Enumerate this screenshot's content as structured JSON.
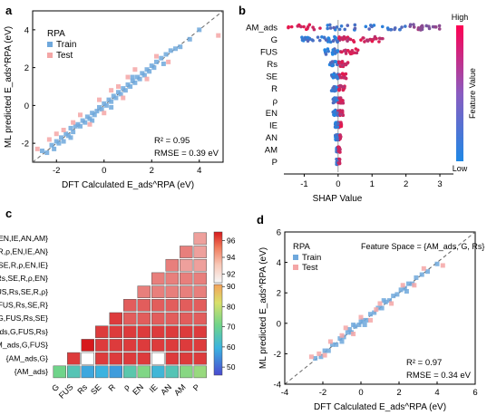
{
  "panels": {
    "a": {
      "letter": "a",
      "legend_title": "RPA",
      "legend": [
        "Train",
        "Test"
      ],
      "stat_r2": "R² = 0.95",
      "stat_rmse": "RMSE = 0.39 eV",
      "xlabel": "DFT Calculated E_ads^RPA (eV)",
      "ylabel": "ML predicted E_ads^RPA (eV)",
      "xticks": [
        "-2",
        "0",
        "2",
        "4"
      ],
      "yticks": [
        "-2",
        "0",
        "2",
        "4"
      ]
    },
    "b": {
      "letter": "b",
      "xlabel": "SHAP Value",
      "xticks": [
        "-1",
        "0",
        "1",
        "2",
        "3"
      ],
      "colorbar_high": "High",
      "colorbar_low": "Low",
      "colorbar_label": "Feature Value"
    },
    "c": {
      "letter": "c",
      "colorbar_ticks_top": [
        "96",
        "94",
        "92"
      ],
      "colorbar_ticks_bottom": [
        "90",
        "80",
        "70",
        "60",
        "50"
      ]
    },
    "d": {
      "letter": "d",
      "legend_title": "RPA",
      "legend": [
        "Train",
        "Test"
      ],
      "feature_space": "Feature Space = {AM_ads, G, Rs}",
      "stat_r2": "R² = 0.97",
      "stat_rmse": "RMSE = 0.34 eV",
      "xlabel": "DFT Calculated E_ads^RPA (eV)",
      "ylabel": "ML predicted E_ads^RPA (eV)",
      "xticks": [
        "-4",
        "-2",
        "0",
        "2",
        "4",
        "6"
      ],
      "yticks": [
        "-4",
        "-2",
        "0",
        "2",
        "4",
        "6"
      ]
    }
  },
  "colors": {
    "train": "#6fa8dc",
    "test": "#f4a6a6",
    "shap_high": "#e8174a",
    "shap_low": "#1e88e5",
    "diag": "#666666"
  },
  "chart_data": [
    {
      "type": "scatter",
      "panel": "a",
      "xlim": [
        -3,
        5
      ],
      "ylim": [
        -3,
        5
      ],
      "series": [
        {
          "name": "Train",
          "points": [
            [
              -2.6,
              -2.4
            ],
            [
              -2.4,
              -2.5
            ],
            [
              -2.2,
              -2.1
            ],
            [
              -2.1,
              -2.3
            ],
            [
              -2.0,
              -1.9
            ],
            [
              -1.9,
              -2.0
            ],
            [
              -1.8,
              -1.7
            ],
            [
              -1.7,
              -1.9
            ],
            [
              -1.6,
              -1.5
            ],
            [
              -1.5,
              -1.6
            ],
            [
              -1.4,
              -1.2
            ],
            [
              -1.3,
              -1.4
            ],
            [
              -1.2,
              -1.1
            ],
            [
              -1.1,
              -1.0
            ],
            [
              -1.0,
              -1.1
            ],
            [
              -0.9,
              -0.8
            ],
            [
              -0.8,
              -0.9
            ],
            [
              -0.7,
              -0.6
            ],
            [
              -0.6,
              -0.7
            ],
            [
              -0.5,
              -0.4
            ],
            [
              -0.4,
              -0.5
            ],
            [
              -0.3,
              -0.3
            ],
            [
              -0.2,
              -0.1
            ],
            [
              -0.1,
              -0.2
            ],
            [
              0.0,
              0.1
            ],
            [
              0.1,
              0.0
            ],
            [
              0.2,
              0.3
            ],
            [
              0.3,
              0.2
            ],
            [
              0.4,
              0.5
            ],
            [
              0.5,
              0.4
            ],
            [
              0.6,
              0.7
            ],
            [
              0.7,
              0.6
            ],
            [
              0.8,
              0.9
            ],
            [
              0.9,
              0.8
            ],
            [
              1.0,
              1.1
            ],
            [
              1.1,
              1.0
            ],
            [
              1.2,
              1.3
            ],
            [
              1.3,
              1.2
            ],
            [
              1.4,
              1.5
            ],
            [
              1.5,
              1.4
            ],
            [
              1.6,
              1.7
            ],
            [
              1.7,
              1.6
            ],
            [
              1.8,
              1.9
            ],
            [
              1.9,
              1.8
            ],
            [
              2.0,
              2.1
            ],
            [
              2.1,
              2.0
            ],
            [
              2.2,
              2.3
            ],
            [
              2.4,
              2.5
            ],
            [
              2.6,
              2.7
            ],
            [
              2.8,
              2.9
            ],
            [
              3.0,
              3.0
            ],
            [
              3.2,
              3.1
            ],
            [
              3.6,
              3.5
            ],
            [
              4.0,
              4.0
            ],
            [
              -0.5,
              -0.8
            ],
            [
              0.3,
              -0.1
            ],
            [
              1.2,
              1.5
            ],
            [
              -1.4,
              -1.7
            ],
            [
              2.5,
              2.2
            ]
          ]
        },
        {
          "name": "Test",
          "points": [
            [
              -2.8,
              -2.3
            ],
            [
              -2.3,
              -1.8
            ],
            [
              -1.7,
              -1.3
            ],
            [
              -1.0,
              -0.5
            ],
            [
              -0.6,
              -1.0
            ],
            [
              -0.2,
              0.3
            ],
            [
              0.3,
              0.8
            ],
            [
              0.8,
              0.4
            ],
            [
              1.3,
              1.9
            ],
            [
              1.8,
              1.4
            ],
            [
              2.2,
              2.6
            ],
            [
              2.7,
              2.3
            ],
            [
              1.0,
              1.5
            ],
            [
              -1.3,
              -0.9
            ],
            [
              0.0,
              -0.4
            ],
            [
              4.8,
              3.7
            ],
            [
              -2.0,
              -1.5
            ],
            [
              0.6,
              1.0
            ]
          ]
        }
      ]
    },
    {
      "type": "scatter",
      "panel": "b",
      "features": [
        "AM_ads",
        "G",
        "FUS",
        "Rs",
        "SE",
        "R",
        "ρ",
        "EN",
        "IE",
        "AN",
        "AM",
        "P"
      ],
      "xlim": [
        -1.6,
        3.4
      ]
    },
    {
      "type": "heatmap",
      "panel": "c",
      "row_labels": [
        "{AM_ads,G,FUS,Rs,SE,R,ρ,EN,IE,AN,AM}",
        "{AM_ads,G,FUS,Rs,SE,R,ρ,EN,IE,AN}",
        "{AM_ads,G,FUS,Rs,SE,R,ρ,EN,IE}",
        "{AM_ads,G,FUS,Rs,SE,R,ρ,EN}",
        "{AM_ads,G,FUS,Rs,SE,R,ρ}",
        "{AM_ads,G,FUS,Rs,SE,R}",
        "{AM_ads,G,FUS,Rs,SE}",
        "{AM_ads,G,FUS,Rs}",
        "{AM_ads,G,FUS}",
        "{AM_ads,G}",
        "{AM_ads}"
      ],
      "col_labels": [
        "G",
        "FUS",
        "Rs",
        "SE",
        "R",
        "ρ",
        "EN",
        "IE",
        "AN",
        "AM",
        "P"
      ],
      "values": [
        [
          null,
          null,
          null,
          null,
          null,
          null,
          null,
          null,
          null,
          null,
          93
        ],
        [
          null,
          null,
          null,
          null,
          null,
          null,
          null,
          null,
          null,
          94,
          93
        ],
        [
          null,
          null,
          null,
          null,
          null,
          null,
          null,
          null,
          94,
          93,
          93
        ],
        [
          null,
          null,
          null,
          null,
          null,
          null,
          null,
          94,
          94,
          94,
          94
        ],
        [
          null,
          null,
          null,
          null,
          null,
          null,
          94,
          94,
          94,
          94,
          94
        ],
        [
          null,
          null,
          null,
          null,
          null,
          95,
          95,
          95,
          95,
          95,
          95
        ],
        [
          null,
          null,
          null,
          null,
          96,
          95,
          95,
          95,
          95,
          95,
          95
        ],
        [
          null,
          null,
          null,
          96,
          96,
          96,
          96,
          96,
          96,
          96,
          96
        ],
        [
          null,
          null,
          97,
          96,
          96,
          96,
          96,
          96,
          96,
          96,
          96
        ],
        [
          null,
          96,
          92,
          96,
          96,
          96,
          96,
          92,
          96,
          96,
          96
        ],
        [
          65,
          60,
          54,
          55,
          53,
          61,
          67,
          56,
          60,
          68,
          70
        ]
      ],
      "colorbar_range": [
        46,
        97
      ]
    },
    {
      "type": "scatter",
      "panel": "d",
      "xlim": [
        -4,
        6
      ],
      "ylim": [
        -4,
        6
      ],
      "series": [
        {
          "name": "Train",
          "points": [
            [
              -2.4,
              -2.3
            ],
            [
              -2.1,
              -2.2
            ],
            [
              -1.9,
              -1.8
            ],
            [
              -1.7,
              -1.8
            ],
            [
              -1.5,
              -1.4
            ],
            [
              -1.3,
              -1.4
            ],
            [
              -1.1,
              -1.0
            ],
            [
              -0.9,
              -0.9
            ],
            [
              -0.7,
              -0.6
            ],
            [
              -0.5,
              -0.6
            ],
            [
              -0.3,
              -0.2
            ],
            [
              -0.1,
              -0.1
            ],
            [
              0.1,
              0.2
            ],
            [
              0.3,
              0.2
            ],
            [
              0.5,
              0.6
            ],
            [
              0.7,
              0.7
            ],
            [
              0.9,
              1.0
            ],
            [
              1.1,
              1.0
            ],
            [
              1.3,
              1.4
            ],
            [
              1.5,
              1.5
            ],
            [
              1.7,
              1.8
            ],
            [
              1.9,
              1.9
            ],
            [
              2.1,
              2.2
            ],
            [
              2.3,
              2.3
            ],
            [
              2.5,
              2.6
            ],
            [
              2.7,
              2.6
            ],
            [
              2.9,
              3.0
            ],
            [
              3.2,
              3.2
            ],
            [
              3.5,
              3.4
            ],
            [
              4.0,
              3.9
            ],
            [
              -0.4,
              -0.1
            ],
            [
              0.2,
              -0.1
            ],
            [
              -1.0,
              -1.2
            ],
            [
              1.2,
              1.5
            ],
            [
              2.4,
              2.1
            ],
            [
              -0.6,
              -0.4
            ],
            [
              0.0,
              0.1
            ]
          ]
        },
        {
          "name": "Test",
          "points": [
            [
              -2.6,
              -2.2
            ],
            [
              -2.2,
              -2.0
            ],
            [
              -1.6,
              -1.2
            ],
            [
              -1.0,
              -0.8
            ],
            [
              -0.4,
              -0.7
            ],
            [
              0.0,
              0.4
            ],
            [
              0.5,
              0.2
            ],
            [
              1.0,
              1.3
            ],
            [
              1.6,
              1.3
            ],
            [
              2.2,
              2.5
            ],
            [
              2.8,
              2.5
            ],
            [
              3.3,
              3.6
            ],
            [
              4.3,
              3.8
            ],
            [
              -0.8,
              -0.3
            ],
            [
              0.8,
              0.9
            ],
            [
              -1.9,
              -2.1
            ]
          ]
        }
      ]
    }
  ]
}
